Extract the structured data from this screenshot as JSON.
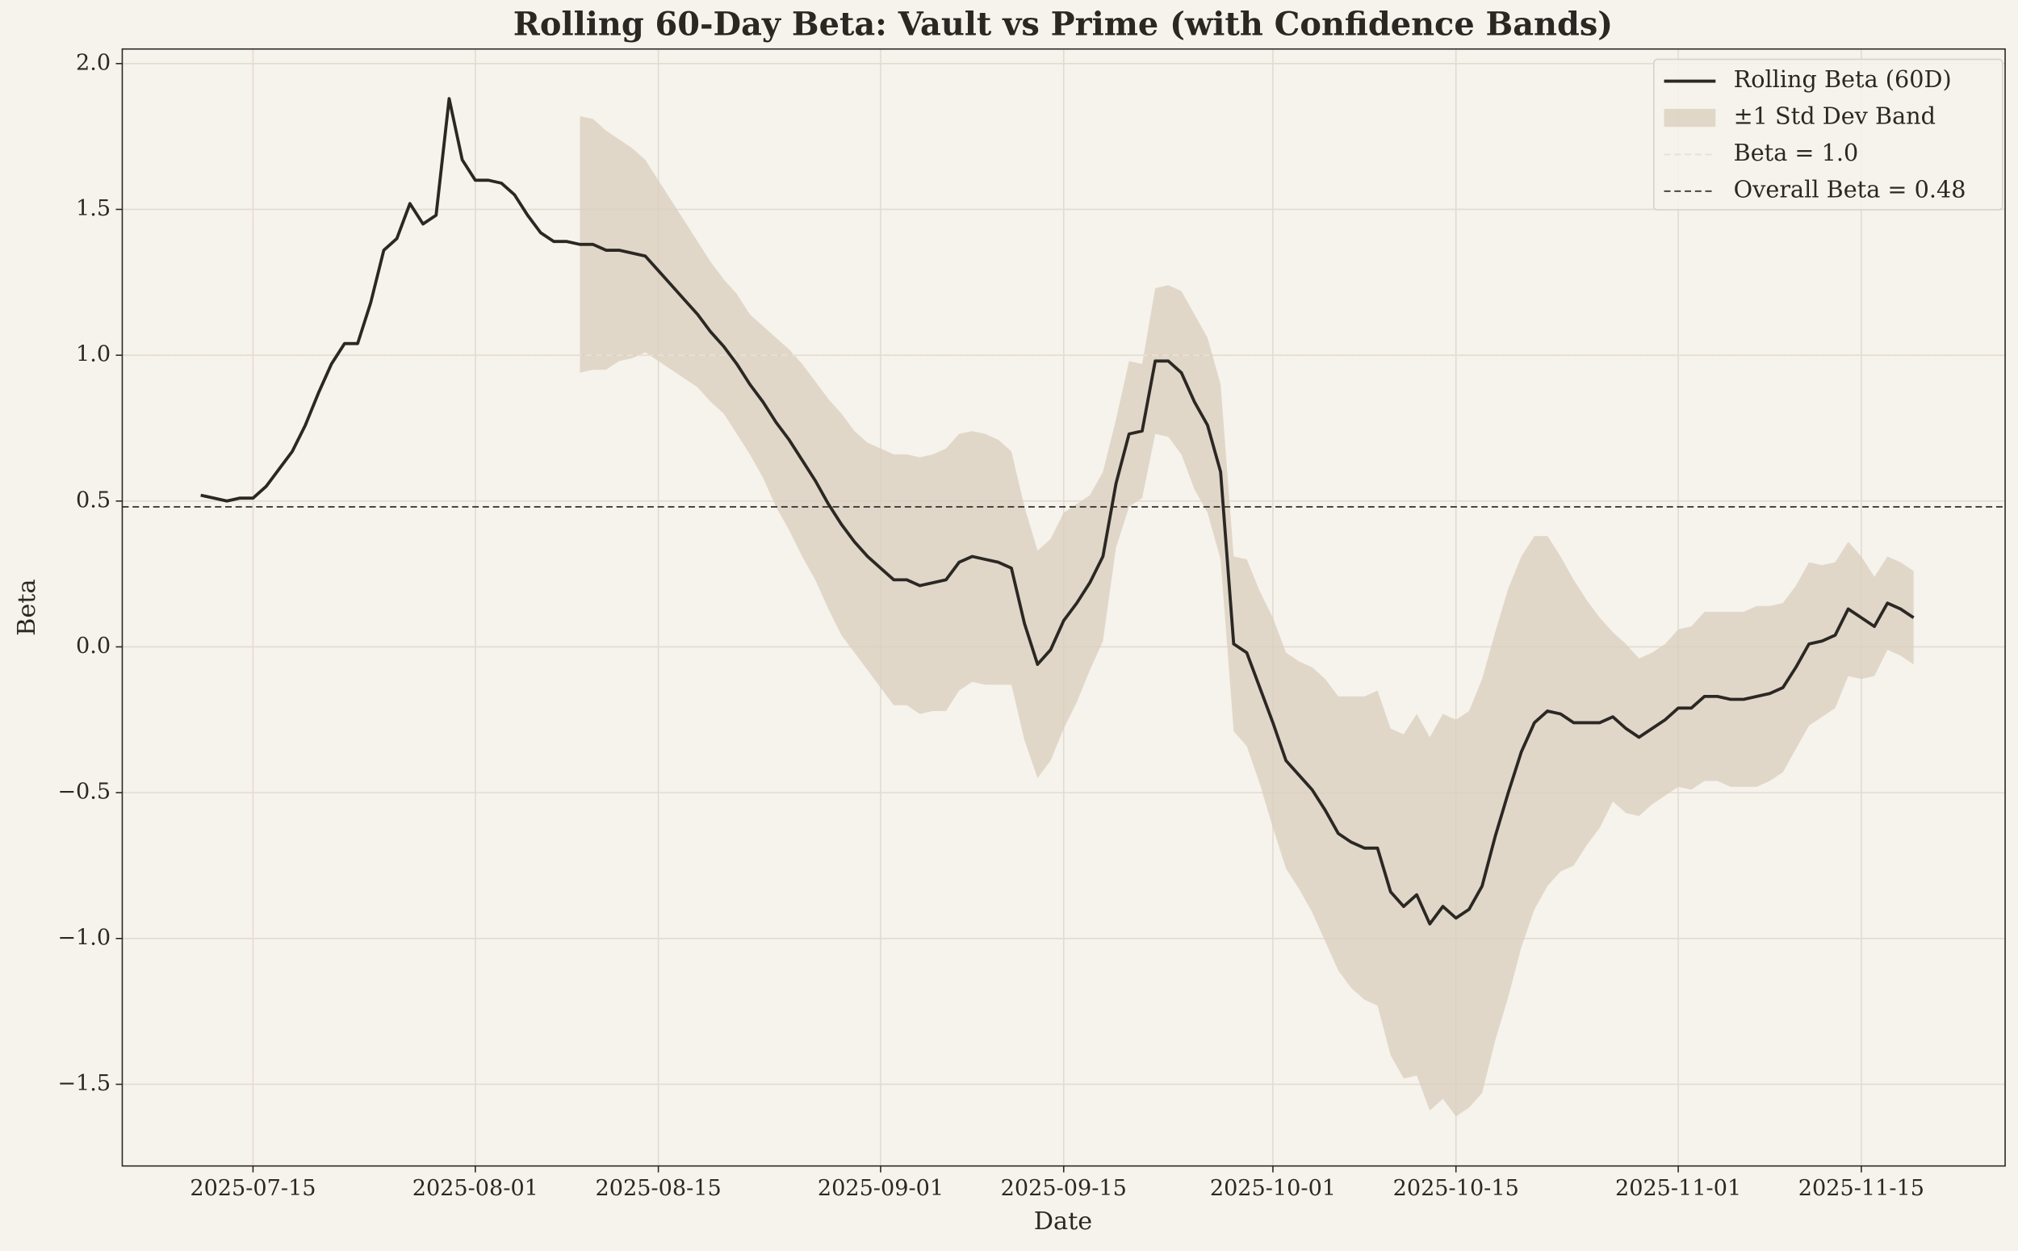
{
  "chart_data": {
    "type": "line",
    "title": "Rolling 60-Day Beta: Vault vs Prime (with Confidence Bands)",
    "xlabel": "Date",
    "ylabel": "Beta",
    "x": [
      "2025-07-11",
      "2025-07-12",
      "2025-07-13",
      "2025-07-14",
      "2025-07-15",
      "2025-07-16",
      "2025-07-17",
      "2025-07-18",
      "2025-07-19",
      "2025-07-20",
      "2025-07-21",
      "2025-07-22",
      "2025-07-23",
      "2025-07-24",
      "2025-07-25",
      "2025-07-26",
      "2025-07-27",
      "2025-07-28",
      "2025-07-29",
      "2025-07-30",
      "2025-07-31",
      "2025-08-01",
      "2025-08-02",
      "2025-08-03",
      "2025-08-04",
      "2025-08-05",
      "2025-08-06",
      "2025-08-07",
      "2025-08-08",
      "2025-08-09",
      "2025-08-10",
      "2025-08-11",
      "2025-08-12",
      "2025-08-13",
      "2025-08-14",
      "2025-08-15",
      "2025-08-16",
      "2025-08-17",
      "2025-08-18",
      "2025-08-19",
      "2025-08-20",
      "2025-08-21",
      "2025-08-22",
      "2025-08-23",
      "2025-08-24",
      "2025-08-25",
      "2025-08-26",
      "2025-08-27",
      "2025-08-28",
      "2025-08-29",
      "2025-08-30",
      "2025-08-31",
      "2025-09-01",
      "2025-09-02",
      "2025-09-03",
      "2025-09-04",
      "2025-09-05",
      "2025-09-06",
      "2025-09-07",
      "2025-09-08",
      "2025-09-09",
      "2025-09-10",
      "2025-09-11",
      "2025-09-12",
      "2025-09-13",
      "2025-09-14",
      "2025-09-15",
      "2025-09-16",
      "2025-09-17",
      "2025-09-18",
      "2025-09-19",
      "2025-09-20",
      "2025-09-21",
      "2025-09-22",
      "2025-09-23",
      "2025-09-24",
      "2025-09-25",
      "2025-09-26",
      "2025-09-27",
      "2025-09-28",
      "2025-09-29",
      "2025-09-30",
      "2025-10-01",
      "2025-10-02",
      "2025-10-03",
      "2025-10-04",
      "2025-10-05",
      "2025-10-06",
      "2025-10-07",
      "2025-10-08",
      "2025-10-09",
      "2025-10-10",
      "2025-10-11",
      "2025-10-12",
      "2025-10-13",
      "2025-10-14",
      "2025-10-15",
      "2025-10-16",
      "2025-10-17",
      "2025-10-18",
      "2025-10-19",
      "2025-10-20",
      "2025-10-21",
      "2025-10-22",
      "2025-10-23",
      "2025-10-24",
      "2025-10-25",
      "2025-10-26",
      "2025-10-27",
      "2025-10-28",
      "2025-10-29",
      "2025-10-30",
      "2025-10-31",
      "2025-11-01",
      "2025-11-02",
      "2025-11-03",
      "2025-11-04",
      "2025-11-05",
      "2025-11-06",
      "2025-11-07",
      "2025-11-08",
      "2025-11-09",
      "2025-11-10",
      "2025-11-11",
      "2025-11-12",
      "2025-11-13",
      "2025-11-14",
      "2025-11-15",
      "2025-11-16",
      "2025-11-17",
      "2025-11-18",
      "2025-11-19"
    ],
    "series": [
      {
        "name": "Rolling Beta (60D)",
        "color": "#2b2824",
        "values": [
          0.52,
          0.51,
          0.5,
          0.51,
          0.51,
          0.55,
          0.61,
          0.67,
          0.76,
          0.87,
          0.97,
          1.04,
          1.04,
          1.18,
          1.36,
          1.4,
          1.52,
          1.45,
          1.48,
          1.88,
          1.67,
          1.6,
          1.6,
          1.59,
          1.55,
          1.48,
          1.42,
          1.39,
          1.39,
          1.38,
          1.38,
          1.36,
          1.36,
          1.35,
          1.34,
          1.29,
          1.24,
          1.19,
          1.14,
          1.08,
          1.03,
          0.97,
          0.9,
          0.84,
          0.77,
          0.71,
          0.64,
          0.57,
          0.49,
          0.42,
          0.36,
          0.31,
          0.27,
          0.23,
          0.23,
          0.21,
          0.22,
          0.23,
          0.29,
          0.31,
          0.3,
          0.29,
          0.27,
          0.08,
          -0.06,
          -0.01,
          0.09,
          0.15,
          0.22,
          0.31,
          0.56,
          0.73,
          0.74,
          0.98,
          0.98,
          0.94,
          0.84,
          0.76,
          0.6,
          0.01,
          -0.02,
          -0.14,
          -0.26,
          -0.39,
          -0.44,
          -0.49,
          -0.56,
          -0.64,
          -0.67,
          -0.69,
          -0.69,
          -0.84,
          -0.89,
          -0.85,
          -0.95,
          -0.89,
          -0.93,
          -0.9,
          -0.82,
          -0.65,
          -0.5,
          -0.36,
          -0.26,
          -0.22,
          -0.23,
          -0.26,
          -0.26,
          -0.26,
          -0.24,
          -0.28,
          -0.31,
          -0.28,
          -0.25,
          -0.21,
          -0.21,
          -0.17,
          -0.17,
          -0.18,
          -0.18,
          -0.17,
          -0.16,
          -0.14,
          -0.07,
          0.01,
          0.02,
          0.04,
          0.13,
          0.1,
          0.07,
          0.15,
          0.13,
          0.1
        ]
      }
    ],
    "band": {
      "name": "±1 Std Dev Band",
      "color": "#d9cebd",
      "upper": [
        null,
        null,
        null,
        null,
        null,
        null,
        null,
        null,
        null,
        null,
        null,
        null,
        null,
        null,
        null,
        null,
        null,
        null,
        null,
        null,
        null,
        null,
        null,
        null,
        null,
        null,
        null,
        null,
        null,
        1.82,
        1.81,
        1.77,
        1.74,
        1.71,
        1.67,
        1.6,
        1.53,
        1.46,
        1.39,
        1.32,
        1.26,
        1.21,
        1.14,
        1.1,
        1.06,
        1.02,
        0.97,
        0.91,
        0.85,
        0.8,
        0.74,
        0.7,
        0.68,
        0.66,
        0.66,
        0.65,
        0.66,
        0.68,
        0.73,
        0.74,
        0.73,
        0.71,
        0.67,
        0.48,
        0.33,
        0.37,
        0.46,
        0.49,
        0.52,
        0.6,
        0.78,
        0.98,
        0.97,
        1.23,
        1.24,
        1.22,
        1.14,
        1.06,
        0.9,
        0.31,
        0.3,
        0.19,
        0.1,
        -0.02,
        -0.05,
        -0.07,
        -0.11,
        -0.17,
        -0.17,
        -0.17,
        -0.15,
        -0.28,
        -0.3,
        -0.23,
        -0.31,
        -0.23,
        -0.25,
        -0.22,
        -0.11,
        0.05,
        0.2,
        0.31,
        0.38,
        0.38,
        0.31,
        0.23,
        0.16,
        0.1,
        0.05,
        0.01,
        -0.04,
        -0.02,
        0.01,
        0.06,
        0.07,
        0.12,
        0.12,
        0.12,
        0.12,
        0.14,
        0.14,
        0.15,
        0.21,
        0.29,
        0.28,
        0.29,
        0.36,
        0.31,
        0.24,
        0.31,
        0.29,
        0.26
      ],
      "lower": [
        null,
        null,
        null,
        null,
        null,
        null,
        null,
        null,
        null,
        null,
        null,
        null,
        null,
        null,
        null,
        null,
        null,
        null,
        null,
        null,
        null,
        null,
        null,
        null,
        null,
        null,
        null,
        null,
        null,
        0.94,
        0.95,
        0.95,
        0.98,
        0.99,
        1.01,
        0.98,
        0.95,
        0.92,
        0.89,
        0.84,
        0.8,
        0.73,
        0.66,
        0.58,
        0.48,
        0.4,
        0.31,
        0.23,
        0.13,
        0.04,
        -0.02,
        -0.08,
        -0.14,
        -0.2,
        -0.2,
        -0.23,
        -0.22,
        -0.22,
        -0.15,
        -0.12,
        -0.13,
        -0.13,
        -0.13,
        -0.32,
        -0.45,
        -0.39,
        -0.28,
        -0.19,
        -0.08,
        0.02,
        0.34,
        0.48,
        0.51,
        0.73,
        0.72,
        0.66,
        0.54,
        0.46,
        0.3,
        -0.29,
        -0.34,
        -0.47,
        -0.62,
        -0.76,
        -0.83,
        -0.91,
        -1.01,
        -1.11,
        -1.17,
        -1.21,
        -1.23,
        -1.4,
        -1.48,
        -1.47,
        -1.59,
        -1.55,
        -1.61,
        -1.58,
        -1.53,
        -1.35,
        -1.2,
        -1.03,
        -0.9,
        -0.82,
        -0.77,
        -0.75,
        -0.68,
        -0.62,
        -0.53,
        -0.57,
        -0.58,
        -0.54,
        -0.51,
        -0.48,
        -0.49,
        -0.46,
        -0.46,
        -0.48,
        -0.48,
        -0.48,
        -0.46,
        -0.43,
        -0.35,
        -0.27,
        -0.24,
        -0.21,
        -0.1,
        -0.11,
        -0.1,
        -0.01,
        -0.03,
        -0.06
      ]
    },
    "reference_lines": [
      {
        "name": "Beta = 1.0",
        "value": 1.0,
        "color": "#e8e0d2"
      },
      {
        "name": "Overall Beta = 0.48",
        "value": 0.48,
        "color": "#4a4540"
      }
    ],
    "xlim": [
      "2025-07-05",
      "2025-11-26"
    ],
    "xticks": [
      "2025-07-15",
      "2025-08-01",
      "2025-08-15",
      "2025-09-01",
      "2025-09-15",
      "2025-10-01",
      "2025-10-15",
      "2025-11-01",
      "2025-11-15"
    ],
    "ylim": [
      -1.78,
      2.05
    ],
    "yticks": [
      {
        "value": -1.5,
        "label": "−1.5"
      },
      {
        "value": -1.0,
        "label": "−1.0"
      },
      {
        "value": -0.5,
        "label": "−0.5"
      },
      {
        "value": 0,
        "label": "0.0"
      },
      {
        "value": 0.5,
        "label": "0.5"
      },
      {
        "value": 1.0,
        "label": "1.0"
      },
      {
        "value": 1.5,
        "label": "1.5"
      },
      {
        "value": 2.0,
        "label": "2.0"
      }
    ],
    "grid": true,
    "legend": "upper right"
  }
}
